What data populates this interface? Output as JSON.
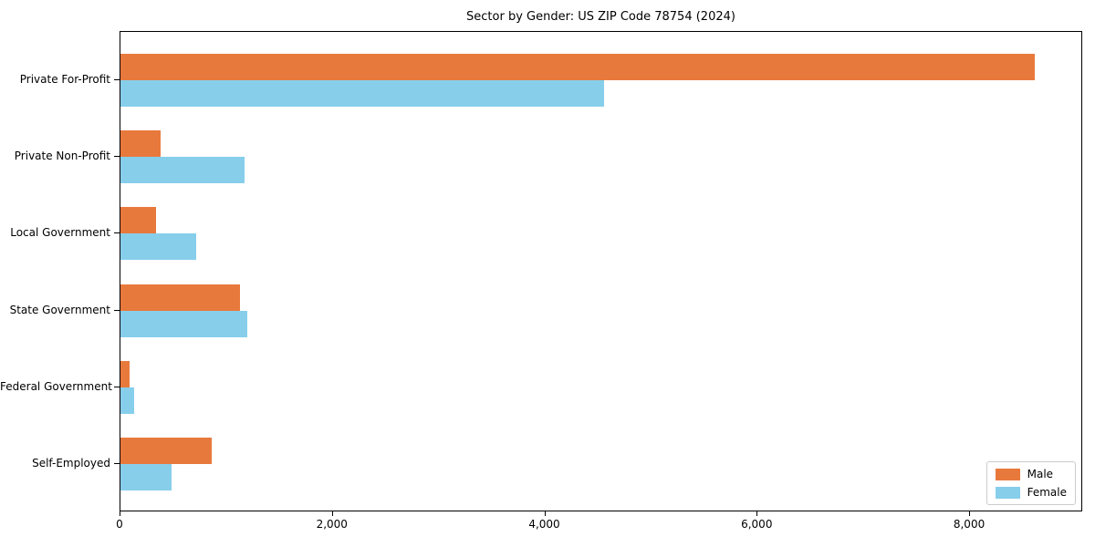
{
  "title": "Sector by Gender: US ZIP Code 78754 (2024)",
  "chart_data": {
    "type": "bar",
    "orientation": "horizontal",
    "title": "Sector by Gender: US ZIP Code 78754 (2024)",
    "xlabel": "",
    "ylabel": "",
    "categories": [
      "Private For-Profit",
      "Private Non-Profit",
      "Local Government",
      "State Government",
      "Federal Government",
      "Self-Employed"
    ],
    "series": [
      {
        "name": "Male",
        "color": "#E8793C",
        "values": [
          8630,
          375,
          340,
          1130,
          85,
          860
        ]
      },
      {
        "name": "Female",
        "color": "#87CEEB",
        "values": [
          4560,
          1170,
          715,
          1195,
          130,
          480
        ]
      }
    ],
    "xlim": [
      0,
      9065
    ],
    "x_ticks": [
      0,
      2000,
      4000,
      6000,
      8000
    ],
    "x_tick_labels": [
      "0",
      "2,000",
      "4,000",
      "6,000",
      "8,000"
    ],
    "grid": false,
    "legend_position": "lower right"
  }
}
